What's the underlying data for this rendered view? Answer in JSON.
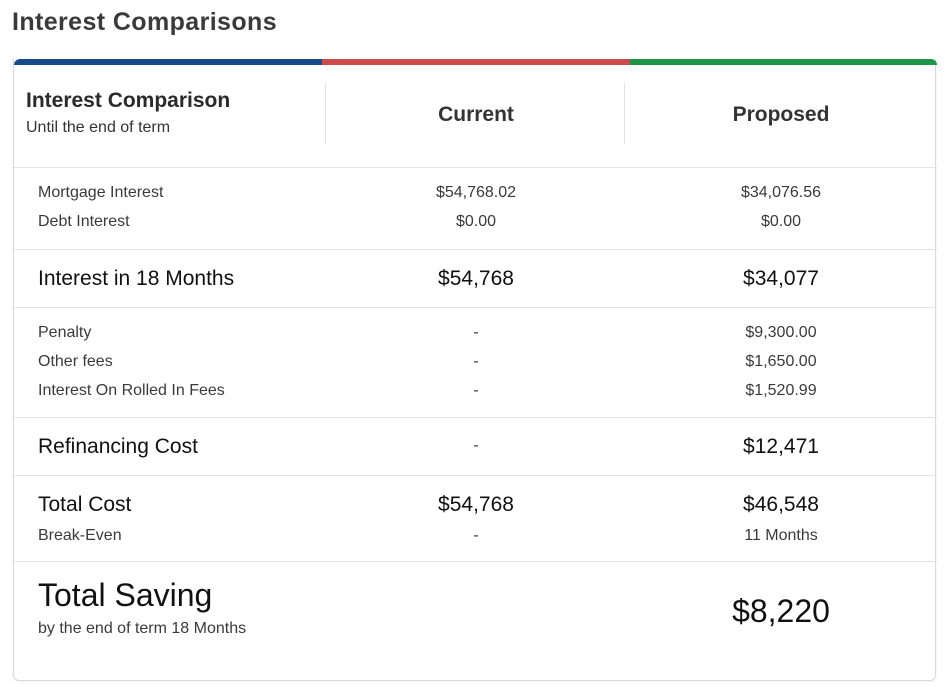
{
  "page_title": "Interest Comparisons",
  "colors": {
    "bar_blue": "#174a8b",
    "bar_red": "#cc4b4b",
    "bar_green": "#1d9448"
  },
  "header": {
    "title": "Interest Comparison",
    "subtitle": "Until the end of term",
    "col_current": "Current",
    "col_proposed": "Proposed"
  },
  "interest_rows": [
    {
      "label": "Mortgage Interest",
      "current": "$54,768.02",
      "proposed": "$34,076.56"
    },
    {
      "label": "Debt Interest",
      "current": "$0.00",
      "proposed": "$0.00"
    }
  ],
  "interest_total": {
    "label": "Interest in 18 Months",
    "current": "$54,768",
    "proposed": "$34,077"
  },
  "fee_rows": [
    {
      "label": "Penalty",
      "current": "-",
      "proposed": "$9,300.00"
    },
    {
      "label": "Other fees",
      "current": "-",
      "proposed": "$1,650.00"
    },
    {
      "label": "Interest On Rolled In Fees",
      "current": "-",
      "proposed": "$1,520.99"
    }
  ],
  "refinancing": {
    "label": "Refinancing Cost",
    "current": "-",
    "proposed": "$12,471"
  },
  "total_cost": {
    "label": "Total Cost",
    "current": "$54,768",
    "proposed": "$46,548"
  },
  "break_even": {
    "label": "Break-Even",
    "current": "-",
    "proposed": "11 Months"
  },
  "saving": {
    "label": "Total Saving",
    "sub": "by the end of term 18 Months",
    "value": "$8,220"
  }
}
